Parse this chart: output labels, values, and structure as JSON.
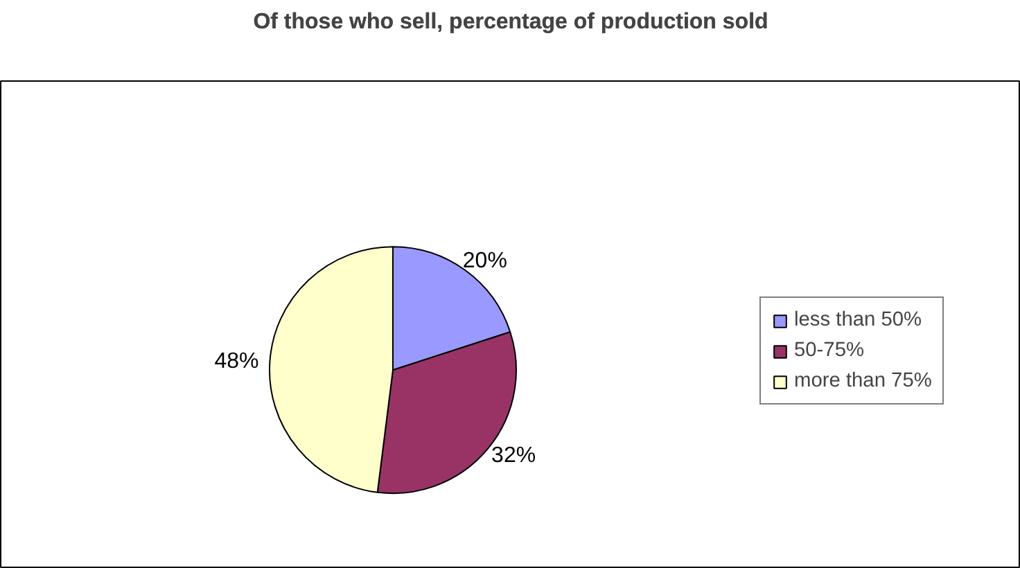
{
  "chart_data": {
    "type": "pie",
    "title": "Of those who sell, percentage of production sold",
    "categories": [
      "less than 50%",
      "50-75%",
      "more than 75%"
    ],
    "values": [
      20,
      32,
      48
    ],
    "colors": [
      "#9999ff",
      "#993366",
      "#ffffcc"
    ],
    "value_labels": [
      "20%",
      "32%",
      "48%"
    ],
    "legend": "right"
  }
}
